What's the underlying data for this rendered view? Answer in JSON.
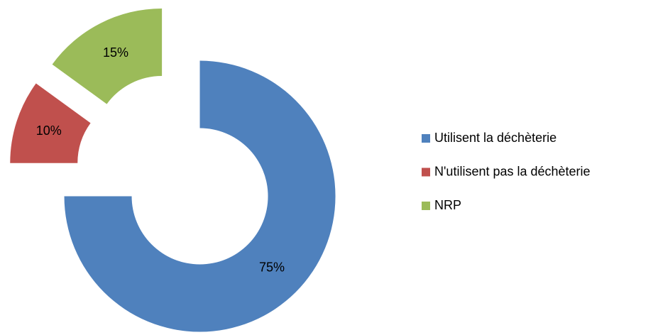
{
  "chart_data": {
    "type": "donut",
    "categories": [
      "Utilisent la déchèterie",
      "N'utilisent pas la déchèterie",
      "NRP"
    ],
    "values": [
      75,
      10,
      15
    ],
    "value_labels": [
      "75%",
      "10%",
      "15%"
    ],
    "colors": [
      "#4f81bd",
      "#c0504d",
      "#9bbb59"
    ],
    "legend": "right"
  }
}
